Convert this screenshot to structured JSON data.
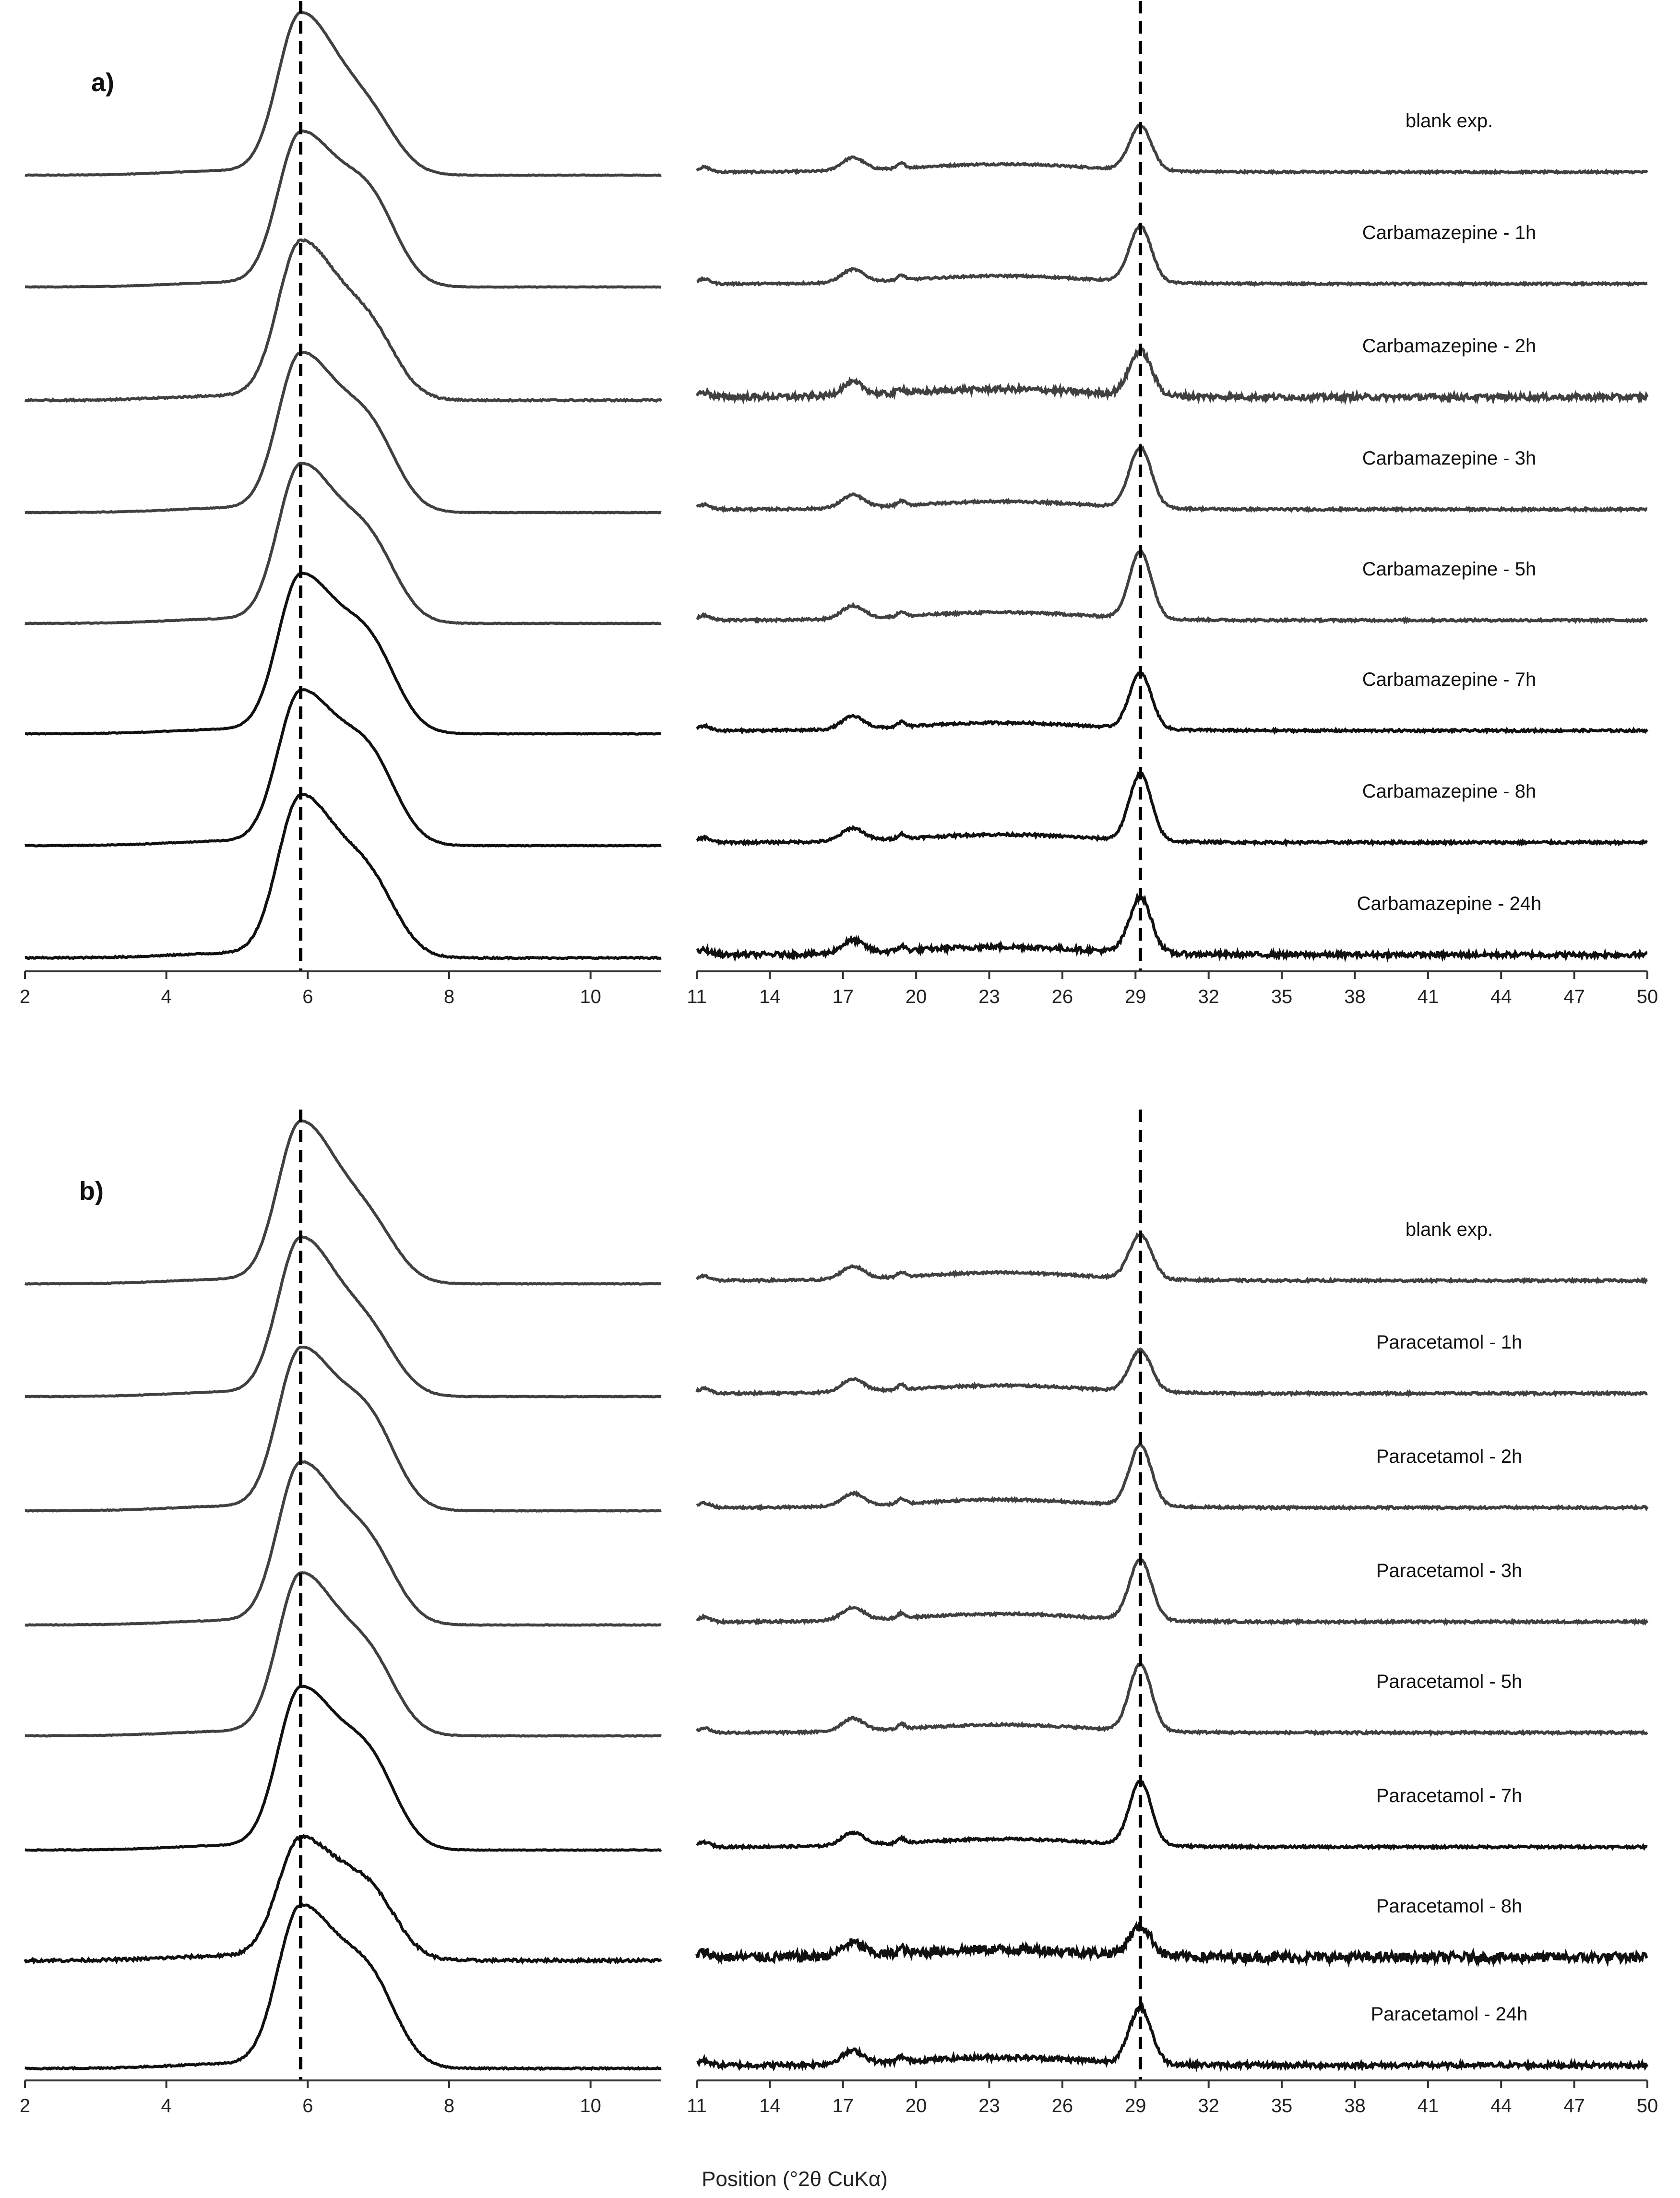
{
  "chart_data": {
    "type": "line",
    "xlabel": "Position (°2θ CuKα)",
    "left_axis": {
      "xlim": [
        2,
        11
      ],
      "ticks": [
        2,
        4,
        6,
        8,
        10
      ]
    },
    "right_axis": {
      "xlim": [
        11,
        50
      ],
      "ticks": [
        11,
        14,
        17,
        20,
        23,
        26,
        29,
        32,
        35,
        38,
        41,
        44,
        47,
        50
      ]
    },
    "reference_lines": {
      "low_angle_peak": 5.9,
      "high_angle_peak": 29.2
    },
    "panels": [
      {
        "id": "a",
        "label": "a)",
        "series": [
          {
            "name": "blank exp.",
            "peak_height": 1.0,
            "shoulder": 0.28,
            "high_peak": 0.28,
            "noise": 0.012
          },
          {
            "name": "Carbamazepine - 1h",
            "peak_height": 0.95,
            "shoulder": 0.45,
            "high_peak": 0.35,
            "noise": 0.012
          },
          {
            "name": "Carbamazepine - 2h",
            "peak_height": 0.98,
            "shoulder": 0.35,
            "high_peak": 0.28,
            "noise": 0.035
          },
          {
            "name": "Carbamazepine - 3h",
            "peak_height": 0.98,
            "shoulder": 0.42,
            "high_peak": 0.38,
            "noise": 0.014
          },
          {
            "name": "Carbamazepine - 5h",
            "peak_height": 0.98,
            "shoulder": 0.4,
            "high_peak": 0.42,
            "noise": 0.014
          },
          {
            "name": "Carbamazepine - 7h",
            "peak_height": 0.98,
            "shoulder": 0.45,
            "high_peak": 0.35,
            "noise": 0.014
          },
          {
            "name": "Carbamazepine - 8h",
            "peak_height": 0.95,
            "shoulder": 0.45,
            "high_peak": 0.42,
            "noise": 0.016
          },
          {
            "name": "Carbamazepine - 24h",
            "peak_height": 1.0,
            "shoulder": 0.38,
            "high_peak": 0.35,
            "noise": 0.03
          }
        ]
      },
      {
        "id": "b",
        "label": "b)",
        "series": [
          {
            "name": "blank exp.",
            "peak_height": 1.0,
            "shoulder": 0.28,
            "high_peak": 0.28,
            "noise": 0.014
          },
          {
            "name": "Paracetamol - 1h",
            "peak_height": 0.98,
            "shoulder": 0.3,
            "high_peak": 0.26,
            "noise": 0.014
          },
          {
            "name": "Paracetamol - 2h",
            "peak_height": 1.0,
            "shoulder": 0.45,
            "high_peak": 0.38,
            "noise": 0.014
          },
          {
            "name": "Paracetamol - 3h",
            "peak_height": 1.0,
            "shoulder": 0.38,
            "high_peak": 0.38,
            "noise": 0.014
          },
          {
            "name": "Paracetamol - 5h",
            "peak_height": 1.0,
            "shoulder": 0.38,
            "high_peak": 0.42,
            "noise": 0.014
          },
          {
            "name": "Paracetamol - 7h",
            "peak_height": 1.0,
            "shoulder": 0.45,
            "high_peak": 0.4,
            "noise": 0.014
          },
          {
            "name": "Paracetamol - 8h",
            "peak_height": 0.75,
            "shoulder": 0.35,
            "high_peak": 0.18,
            "noise": 0.06
          },
          {
            "name": "Paracetamol - 24h",
            "peak_height": 1.0,
            "shoulder": 0.45,
            "high_peak": 0.35,
            "noise": 0.03
          }
        ]
      }
    ]
  }
}
